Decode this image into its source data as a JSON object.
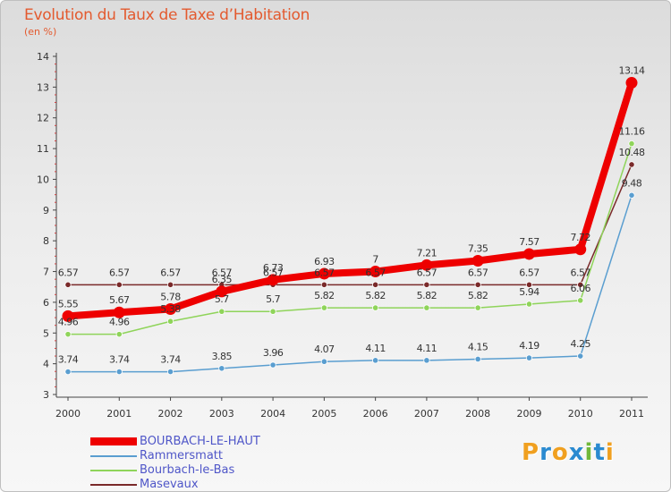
{
  "header": {
    "title": "Evolution du Taux de Taxe d’Habitation",
    "unit": "(en %)"
  },
  "logo": {
    "letters": [
      "P",
      "r",
      "o",
      "x",
      "i",
      "t",
      "i"
    ],
    "colors": [
      "#f0a020",
      "#2a8ad0",
      "#f0a020",
      "#2a8ad0",
      "#70b83a",
      "#2a8ad0",
      "#f0a020"
    ]
  },
  "chart_data": {
    "type": "line",
    "title": "Evolution du Taux de Taxe d’Habitation",
    "ylabel": "(en %)",
    "xlabel": "",
    "ylim": [
      3,
      14
    ],
    "yticks": [
      3,
      4,
      5,
      6,
      7,
      8,
      9,
      10,
      11,
      12,
      13,
      14
    ],
    "categories": [
      "2000",
      "2001",
      "2002",
      "2003",
      "2004",
      "2005",
      "2006",
      "2007",
      "2008",
      "2009",
      "2010",
      "2011"
    ],
    "legend_position": "bottom-left",
    "series": [
      {
        "name": "Masevaux",
        "color": "#7a2a2a",
        "values": [
          6.57,
          6.57,
          6.57,
          6.57,
          6.57,
          6.57,
          6.57,
          6.57,
          6.57,
          6.57,
          6.57,
          10.48
        ],
        "labels": [
          "6.57",
          "6.57",
          "6.57",
          "6.57",
          "6.57",
          "6.57",
          "6.57",
          "6.57",
          "6.57",
          "6.57",
          "6.57",
          "10.48"
        ]
      },
      {
        "name": "Bourbach-le-Bas",
        "color": "#8fd45a",
        "values": [
          4.96,
          4.96,
          5.38,
          5.7,
          5.7,
          5.82,
          5.82,
          5.82,
          5.82,
          5.94,
          6.06,
          11.16
        ],
        "labels": [
          "4.96",
          "4.96",
          "5.38",
          "5.7",
          "5.7",
          "5.82",
          "5.82",
          "5.82",
          "5.82",
          "5.94",
          "6.06",
          "11.16"
        ]
      },
      {
        "name": "Rammersmatt",
        "color": "#5a9ed0",
        "values": [
          3.74,
          3.74,
          3.74,
          3.85,
          3.96,
          4.07,
          4.11,
          4.11,
          4.15,
          4.19,
          4.25,
          9.48
        ],
        "labels": [
          "3.74",
          "3.74",
          "3.74",
          "3.85",
          "3.96",
          "4.07",
          "4.11",
          "4.11",
          "4.15",
          "4.19",
          "4.25",
          "9.48"
        ]
      },
      {
        "name": "BOURBACH-LE-HAUT",
        "color": "#ee0000",
        "values": [
          5.55,
          5.67,
          5.78,
          6.35,
          6.73,
          6.93,
          7.0,
          7.21,
          7.35,
          7.57,
          7.72,
          13.14
        ],
        "labels": [
          "5.55",
          "5.67",
          "5.78",
          "6.35",
          "6.73",
          "6.93",
          "7",
          "7.21",
          "7.35",
          "7.57",
          "7.72",
          "13.14"
        ]
      }
    ],
    "legend_order": [
      "BOURBACH-LE-HAUT",
      "Rammersmatt",
      "Bourbach-le-Bas",
      "Masevaux"
    ]
  }
}
